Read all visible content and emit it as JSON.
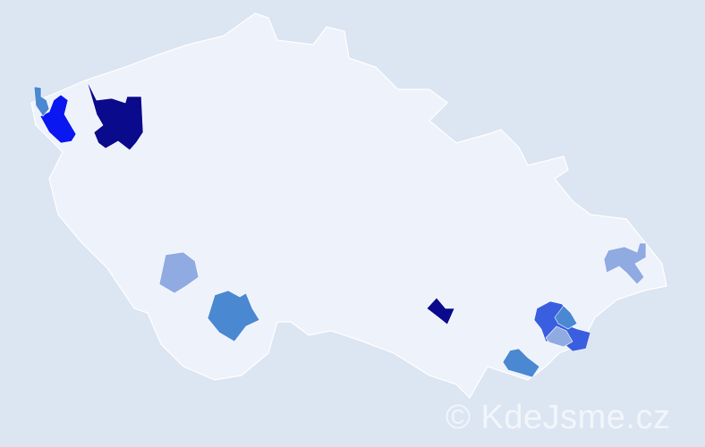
{
  "map": {
    "background_color": "#dce5f2",
    "land_color": "#eef2fa",
    "border_color": "#ffffff",
    "highlight_colors": {
      "darkest": "#0a0a8c",
      "strong": "#0a17f0",
      "medium": "#3a5ee0",
      "light": "#4b88d2",
      "lightest": "#90aae2"
    },
    "highlighted_districts": [
      {
        "id": "nw-navy",
        "level": "darkest"
      },
      {
        "id": "nw-blue",
        "level": "strong"
      },
      {
        "id": "nw-small",
        "level": "light"
      },
      {
        "id": "sw-light",
        "level": "lightest"
      },
      {
        "id": "south-medium",
        "level": "light"
      },
      {
        "id": "central-navy",
        "level": "darkest"
      },
      {
        "id": "se-medium",
        "level": "medium"
      },
      {
        "id": "se-light",
        "level": "light"
      },
      {
        "id": "se-lightest",
        "level": "lightest"
      },
      {
        "id": "se-south",
        "level": "light"
      },
      {
        "id": "east-light",
        "level": "lightest"
      }
    ]
  },
  "watermark": "© KdeJsme.cz"
}
